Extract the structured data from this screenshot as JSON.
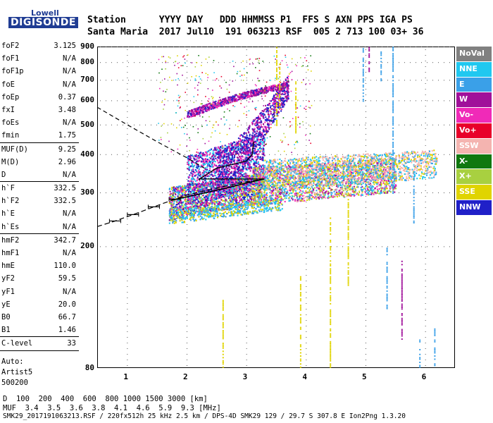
{
  "logo": {
    "line1": "Lowell",
    "line2": "DIGISONDE"
  },
  "header": {
    "labels": "Station      YYYY DAY   DDD HHMMSS P1  FFS S AXN PPS IGA PS",
    "values": "Santa Maria  2017 Jul10  191 063213 RSF  005 2 713 100 03+ 36"
  },
  "params": {
    "group1": [
      {
        "name": "foF2",
        "value": "3.125"
      },
      {
        "name": "foF1",
        "value": "N/A"
      },
      {
        "name": "foF1p",
        "value": "N/A"
      },
      {
        "name": "foE",
        "value": "N/A"
      },
      {
        "name": "foEp",
        "value": "0.37"
      },
      {
        "name": "fxI",
        "value": "3.48"
      },
      {
        "name": "foEs",
        "value": "N/A"
      },
      {
        "name": "fmin",
        "value": "1.75"
      }
    ],
    "group2": [
      {
        "name": "MUF(D)",
        "value": "9.25"
      },
      {
        "name": "M(D)",
        "value": "2.96"
      },
      {
        "name": "D",
        "value": "N/A"
      }
    ],
    "group3": [
      {
        "name": "h`F",
        "value": "332.5"
      },
      {
        "name": "h`F2",
        "value": "332.5"
      },
      {
        "name": "h`E",
        "value": "N/A"
      },
      {
        "name": "h`Es",
        "value": "N/A"
      }
    ],
    "group4": [
      {
        "name": "hmF2",
        "value": "342.7"
      },
      {
        "name": "hmF1",
        "value": "N/A"
      },
      {
        "name": "hmE",
        "value": "110.0"
      },
      {
        "name": "yF2",
        "value": "59.5"
      },
      {
        "name": "yF1",
        "value": "N/A"
      },
      {
        "name": "yE",
        "value": "20.0"
      },
      {
        "name": "B0",
        "value": "66.7"
      },
      {
        "name": "B1",
        "value": "1.46"
      }
    ],
    "group5": [
      {
        "name": "C-level",
        "value": "33"
      }
    ]
  },
  "auto": {
    "line1": "Auto:",
    "line2": "Artist5",
    "line3": "500200"
  },
  "legend": [
    {
      "label": "NoVal",
      "color": "#808080"
    },
    {
      "label": "NNE",
      "color": "#20c8f0"
    },
    {
      "label": "E",
      "color": "#3aa0e8"
    },
    {
      "label": "W",
      "color": "#a0109a"
    },
    {
      "label": "Vo-",
      "color": "#f02ab8"
    },
    {
      "label": "Vo+",
      "color": "#e8002a"
    },
    {
      "label": "SSW",
      "color": "#f4b4b0"
    },
    {
      "label": "X-",
      "color": "#107810"
    },
    {
      "label": "X+",
      "color": "#a8d040"
    },
    {
      "label": "SSE",
      "color": "#e0d400"
    },
    {
      "label": "NNW",
      "color": "#2020c8"
    }
  ],
  "chart_data": {
    "type": "scatter",
    "title": "",
    "xlabel": "",
    "ylabel": "",
    "xlim": [
      0.5,
      6.5
    ],
    "ylim": [
      80,
      900
    ],
    "y_scale": "log",
    "x_ticks": [
      1,
      2,
      3,
      4,
      5,
      6
    ],
    "y_ticks": [
      80,
      200,
      300,
      400,
      500,
      600,
      700,
      800,
      900
    ],
    "profile_lines": {
      "dashed_virtual_height": [
        [
          0.5,
          570
        ],
        [
          1.0,
          500
        ],
        [
          1.5,
          440
        ],
        [
          2.0,
          390
        ],
        [
          2.3,
          360
        ]
      ],
      "dashed_trace": [
        [
          0.5,
          232
        ],
        [
          0.8,
          242
        ],
        [
          1.2,
          258
        ],
        [
          1.6,
          276
        ],
        [
          2.0,
          294
        ],
        [
          2.5,
          310
        ],
        [
          3.0,
          325
        ],
        [
          3.3,
          332
        ]
      ],
      "solid_trace": [
        [
          1.75,
          283
        ],
        [
          2.2,
          296
        ],
        [
          2.6,
          308
        ],
        [
          3.0,
          322
        ],
        [
          3.3,
          332
        ]
      ],
      "f2_curve": [
        [
          2.2,
          330
        ],
        [
          2.5,
          360
        ],
        [
          2.8,
          372
        ],
        [
          3.0,
          380
        ],
        [
          3.1,
          400
        ],
        [
          3.125,
          440
        ]
      ]
    }
  },
  "muf_table": {
    "d_label": "D",
    "d_values": "  100  200  400  600  800 1000 1500 3000 [km]",
    "muf_label": "MUF",
    "muf_values": "  3.4  3.5  3.6  3.8  4.1  4.6  5.9  9.3 [MHz]"
  },
  "footer": "SMK29_2017191063213.RSF / 220fx512h 25 kHz 2.5 km / DPS-4D SMK29 129 / 29.7 S 307.8 E Ion2Png 1.3.20"
}
